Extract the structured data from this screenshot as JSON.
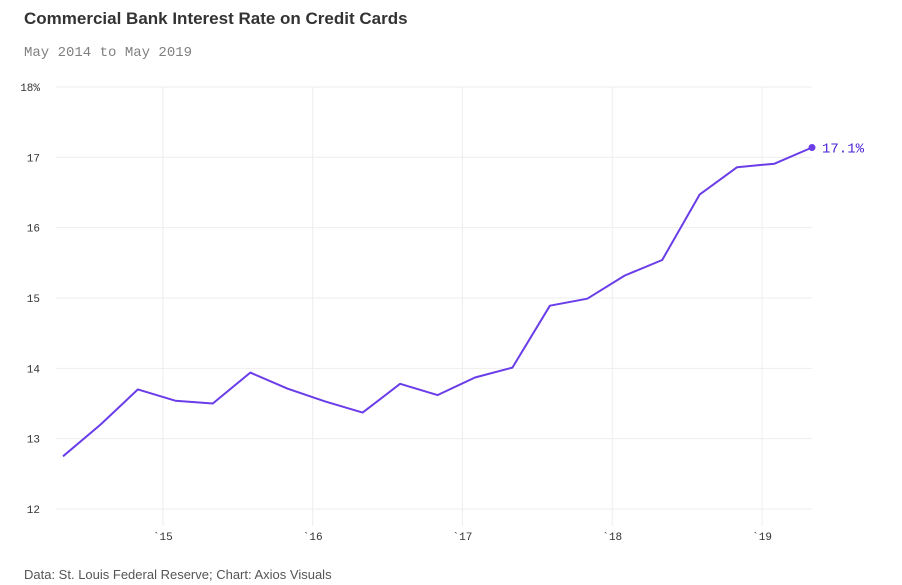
{
  "title": "Commercial Bank Interest Rate on Credit Cards",
  "subtitle": "May 2014 to May 2019",
  "source": "Data: St. Louis Federal Reserve; Chart: Axios Visuals",
  "colors": {
    "line": "#6a3de8",
    "label": "#4a1fd6"
  },
  "chart_data": {
    "type": "line",
    "title": "Commercial Bank Interest Rate on Credit Cards",
    "subtitle": "May 2014 to May 2019",
    "xlabel": "",
    "ylabel": "",
    "ylim": [
      12,
      18
    ],
    "yticks": [
      {
        "value": 12,
        "label": "12"
      },
      {
        "value": 13,
        "label": "13"
      },
      {
        "value": 14,
        "label": "14"
      },
      {
        "value": 15,
        "label": "15"
      },
      {
        "value": 16,
        "label": "16"
      },
      {
        "value": 17,
        "label": "17"
      },
      {
        "value": 18,
        "label": "18%"
      }
    ],
    "xlim": [
      "2014-05",
      "2019-05"
    ],
    "xticks": [
      {
        "value": "2015-01",
        "label": "`15"
      },
      {
        "value": "2016-01",
        "label": "`16"
      },
      {
        "value": "2017-01",
        "label": "`17"
      },
      {
        "value": "2018-01",
        "label": "`18"
      },
      {
        "value": "2019-01",
        "label": "`19"
      }
    ],
    "grid": true,
    "series": [
      {
        "x": [
          "2014-05",
          "2014-08",
          "2014-11",
          "2015-02",
          "2015-05",
          "2015-08",
          "2015-11",
          "2016-02",
          "2016-05",
          "2016-08",
          "2016-11",
          "2017-02",
          "2017-05",
          "2017-08",
          "2017-11",
          "2018-02",
          "2018-05",
          "2018-08",
          "2018-11",
          "2019-02",
          "2019-05"
        ],
        "values": [
          12.75,
          13.2,
          13.7,
          13.54,
          13.5,
          13.94,
          13.71,
          13.53,
          13.37,
          13.78,
          13.62,
          13.87,
          14.01,
          14.89,
          14.99,
          15.32,
          15.54,
          16.47,
          16.86,
          16.91,
          17.14
        ]
      }
    ],
    "end_label": "17.1%"
  }
}
